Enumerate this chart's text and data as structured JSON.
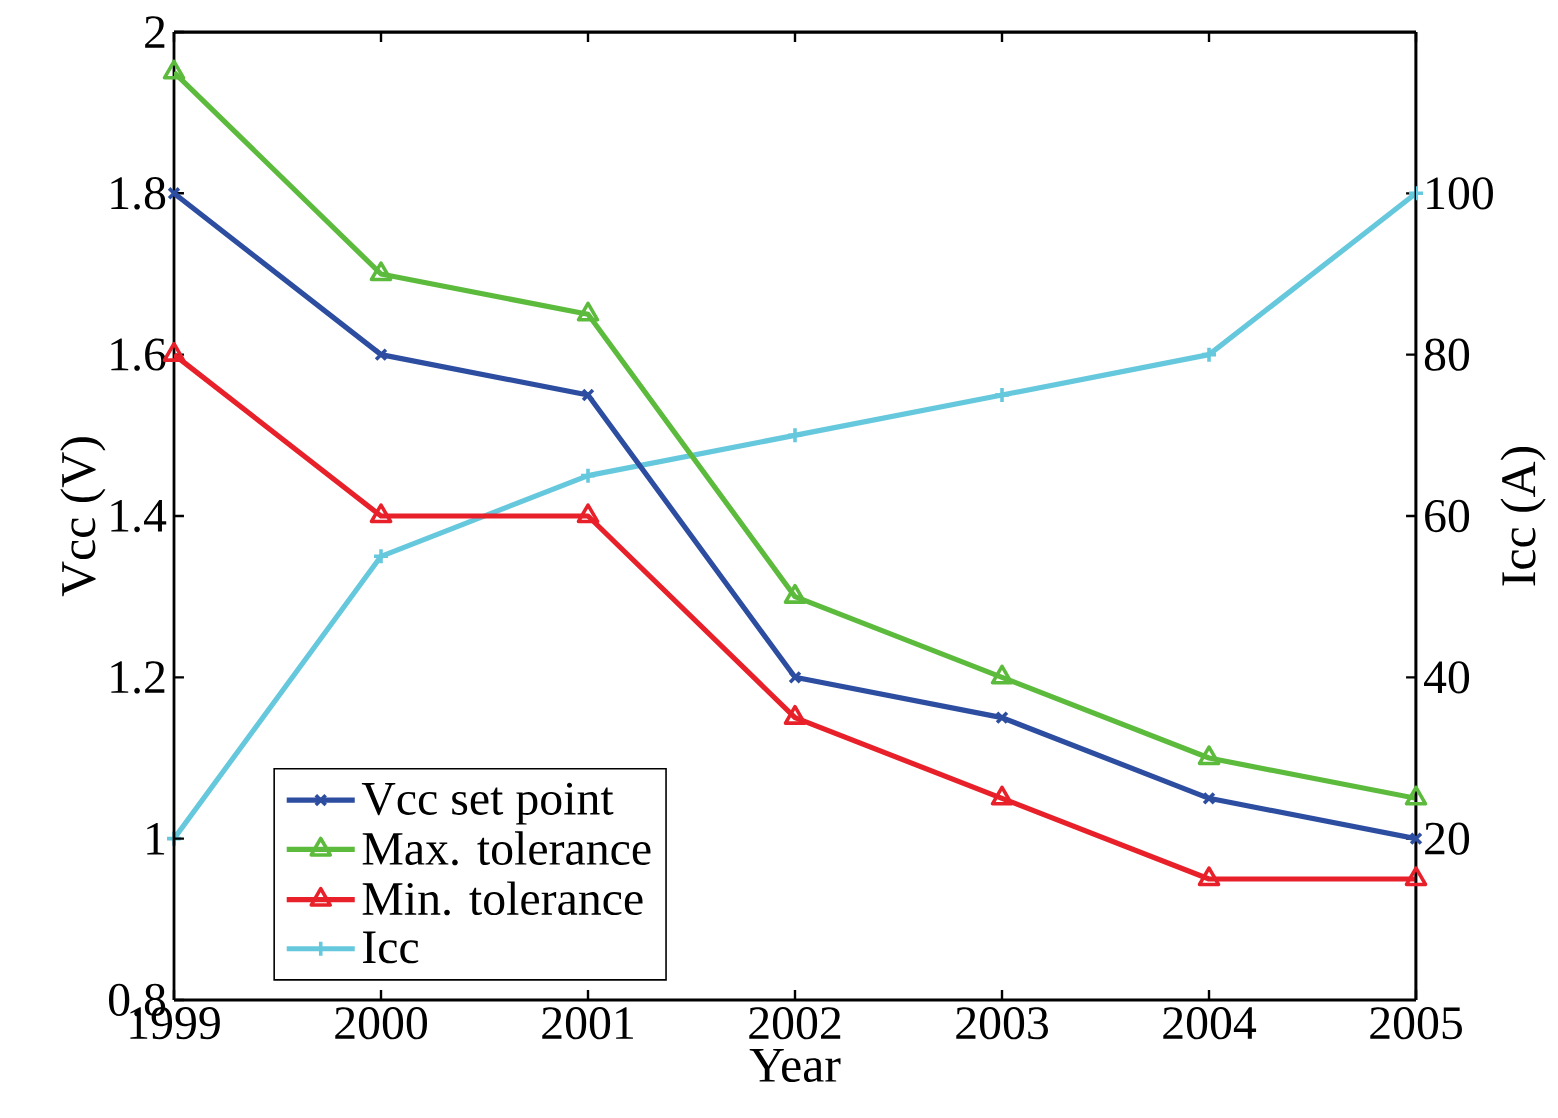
{
  "chart_data": {
    "type": "line",
    "xlabel": "Year",
    "ylabel": "Vcc (V)",
    "y2label": "Icc (A)",
    "x": [
      1999,
      2000,
      2001,
      2002,
      2003,
      2004,
      2005
    ],
    "xlim": [
      1999,
      2005
    ],
    "xticks": [
      1999,
      2000,
      2001,
      2002,
      2003,
      2004,
      2005
    ],
    "ylim": [
      0.8,
      2
    ],
    "yticks": [
      0.8,
      1,
      1.2,
      1.4,
      1.6,
      1.8,
      2
    ],
    "y2lim": [
      0,
      120
    ],
    "y2ticks": [
      20,
      40,
      60,
      80,
      100
    ],
    "legend": "bottom left",
    "grid": false,
    "line_style": "solid",
    "series": [
      {
        "name": "Vcc set point",
        "color": "#2c4da0",
        "marker": "cross",
        "values": [
          1.8,
          1.6,
          1.55,
          1.2,
          1.15,
          1.05,
          1.0
        ]
      },
      {
        "name": "Max. tolerance",
        "color": "#5cbb3c",
        "marker": "triangle",
        "values": [
          1.95,
          1.7,
          1.65,
          1.3,
          1.2,
          1.1,
          1.05
        ]
      },
      {
        "name": "Min. tolerance",
        "color": "#e8202a",
        "marker": "triangle",
        "values": [
          1.6,
          1.4,
          1.4,
          1.15,
          1.05,
          0.95,
          0.95
        ]
      },
      {
        "name": "Icc",
        "color": "#66c8dc",
        "marker": "plus",
        "axis": "y2",
        "values": [
          20,
          55,
          65,
          70,
          75,
          80,
          100
        ]
      }
    ]
  }
}
